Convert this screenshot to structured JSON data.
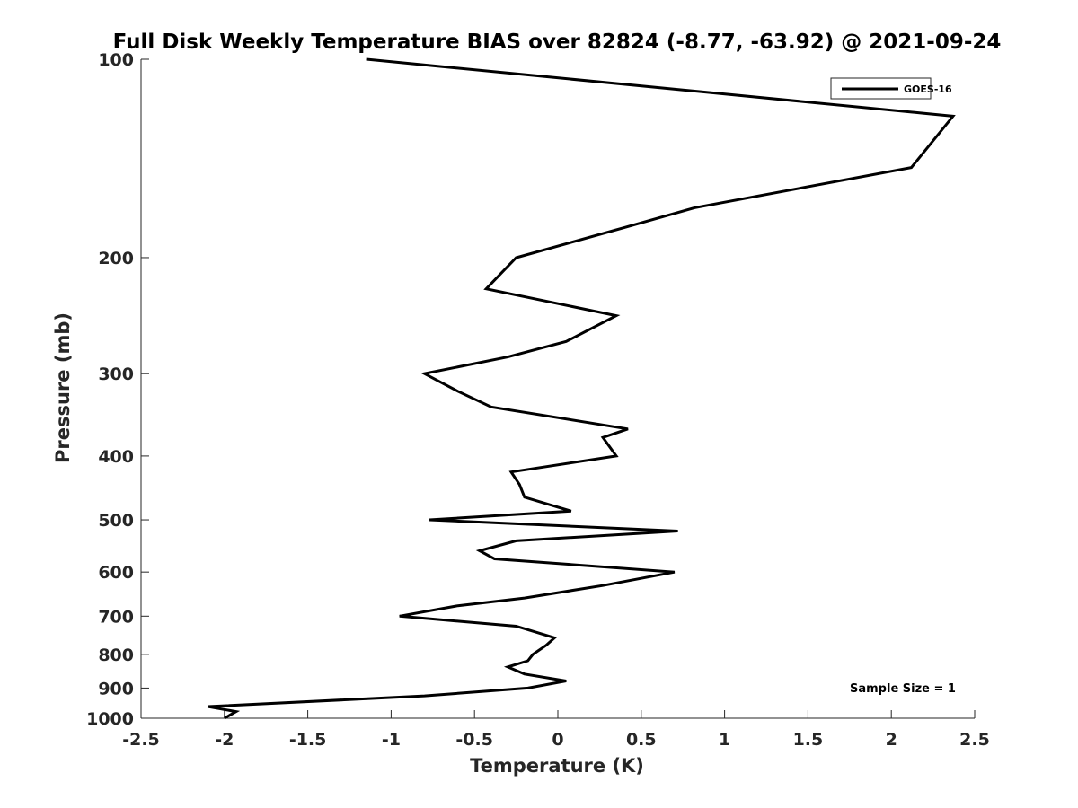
{
  "chart_data": {
    "type": "line",
    "title": "Full Disk Weekly Temperature BIAS over 82824 (-8.77, -63.92) @ 2021-09-24",
    "xlabel": "Temperature (K)",
    "ylabel": "Pressure (mb)",
    "xlim": [
      -2.5,
      2.5
    ],
    "ylim": [
      100,
      1000
    ],
    "y_scale": "log",
    "y_reversed": true,
    "grid": false,
    "legend_position": "top-right",
    "xticks": [
      {
        "value": -2.5,
        "label": "-2.5"
      },
      {
        "value": -2,
        "label": "-2"
      },
      {
        "value": -1.5,
        "label": "-1.5"
      },
      {
        "value": -1,
        "label": "-1"
      },
      {
        "value": -0.5,
        "label": "-0.5"
      },
      {
        "value": 0,
        "label": "0"
      },
      {
        "value": 0.5,
        "label": "0.5"
      },
      {
        "value": 1,
        "label": "1"
      },
      {
        "value": 1.5,
        "label": "1.5"
      },
      {
        "value": 2,
        "label": "2"
      },
      {
        "value": 2.5,
        "label": "2.5"
      }
    ],
    "yticks": [
      {
        "value": 100,
        "label": "100"
      },
      {
        "value": 200,
        "label": "200"
      },
      {
        "value": 300,
        "label": "300"
      },
      {
        "value": 400,
        "label": "400"
      },
      {
        "value": 500,
        "label": "500"
      },
      {
        "value": 600,
        "label": "600"
      },
      {
        "value": 700,
        "label": "700"
      },
      {
        "value": 800,
        "label": "800"
      },
      {
        "value": 900,
        "label": "900"
      },
      {
        "value": 1000,
        "label": "1000"
      }
    ],
    "series": [
      {
        "name": "GOES-16",
        "color": "#000000",
        "points": [
          {
            "t": -1.15,
            "p": 100
          },
          {
            "t": 2.37,
            "p": 122
          },
          {
            "t": 2.12,
            "p": 146
          },
          {
            "t": 0.82,
            "p": 168
          },
          {
            "t": 0.4,
            "p": 180
          },
          {
            "t": -0.25,
            "p": 200
          },
          {
            "t": -0.43,
            "p": 223
          },
          {
            "t": 0.35,
            "p": 245
          },
          {
            "t": 0.05,
            "p": 268
          },
          {
            "t": -0.3,
            "p": 283
          },
          {
            "t": -0.8,
            "p": 300
          },
          {
            "t": -0.6,
            "p": 319
          },
          {
            "t": -0.4,
            "p": 337
          },
          {
            "t": 0.42,
            "p": 364
          },
          {
            "t": 0.27,
            "p": 375
          },
          {
            "t": 0.35,
            "p": 400
          },
          {
            "t": -0.28,
            "p": 423
          },
          {
            "t": -0.23,
            "p": 442
          },
          {
            "t": -0.2,
            "p": 462
          },
          {
            "t": 0.08,
            "p": 485
          },
          {
            "t": -0.77,
            "p": 500
          },
          {
            "t": 0.72,
            "p": 520
          },
          {
            "t": -0.25,
            "p": 538
          },
          {
            "t": -0.47,
            "p": 557
          },
          {
            "t": -0.38,
            "p": 573
          },
          {
            "t": 0.7,
            "p": 600
          },
          {
            "t": 0.27,
            "p": 629
          },
          {
            "t": -0.2,
            "p": 657
          },
          {
            "t": -0.6,
            "p": 675
          },
          {
            "t": -0.95,
            "p": 700
          },
          {
            "t": -0.25,
            "p": 725
          },
          {
            "t": -0.02,
            "p": 755
          },
          {
            "t": -0.07,
            "p": 775
          },
          {
            "t": -0.15,
            "p": 800
          },
          {
            "t": -0.18,
            "p": 818
          },
          {
            "t": -0.3,
            "p": 836
          },
          {
            "t": -0.2,
            "p": 857
          },
          {
            "t": 0.05,
            "p": 878
          },
          {
            "t": -0.18,
            "p": 900
          },
          {
            "t": -0.8,
            "p": 925
          },
          {
            "t": -2.1,
            "p": 960
          },
          {
            "t": -1.93,
            "p": 977
          },
          {
            "t": -2.0,
            "p": 1000
          }
        ]
      }
    ],
    "legend": {
      "entries": [
        "GOES-16"
      ]
    },
    "annotation": "Sample Size = 1"
  }
}
